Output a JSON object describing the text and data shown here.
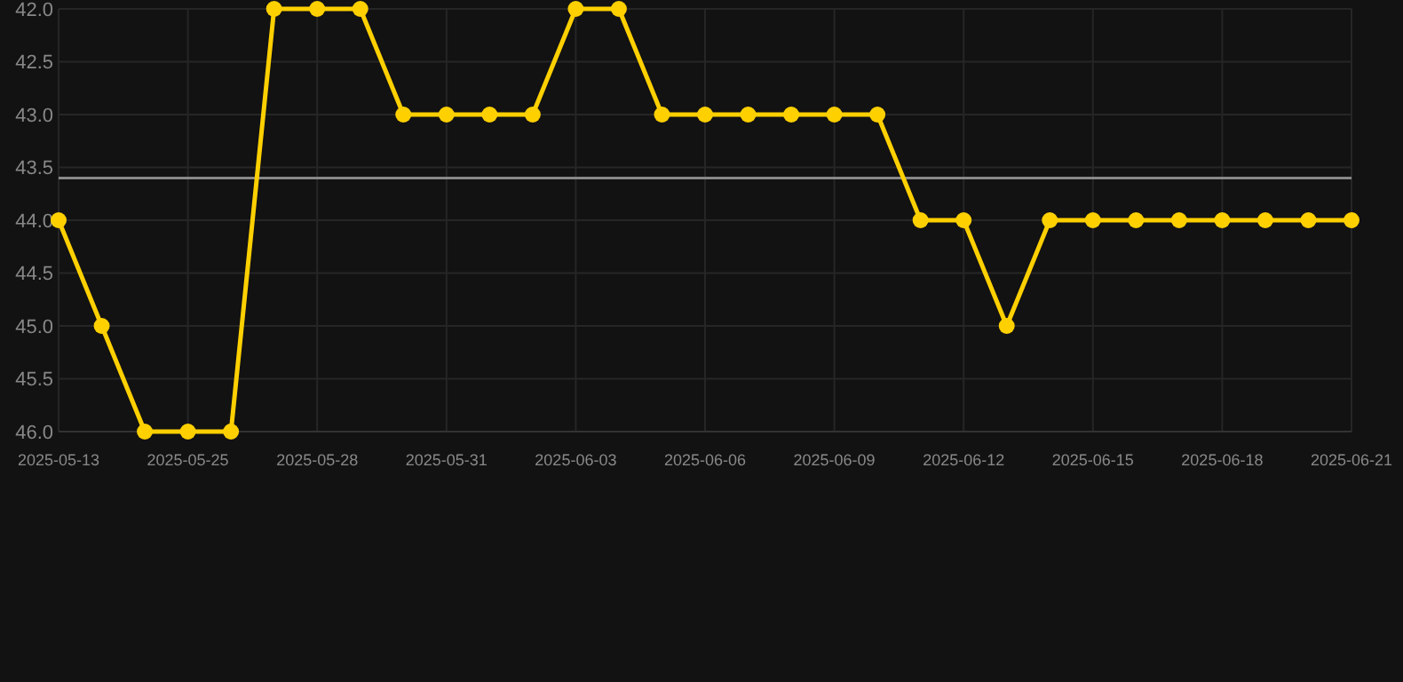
{
  "chart_data": {
    "type": "line",
    "categories": [
      "2025-05-13",
      null,
      null,
      "2025-05-25",
      null,
      null,
      "2025-05-28",
      null,
      null,
      "2025-05-31",
      null,
      null,
      "2025-06-03",
      null,
      null,
      "2025-06-06",
      null,
      null,
      "2025-06-09",
      null,
      null,
      "2025-06-12",
      null,
      null,
      "2025-06-15",
      null,
      null,
      "2025-06-18",
      null,
      null,
      "2025-06-21"
    ],
    "series": [
      {
        "color": "#ffd000",
        "values": [
          44,
          45,
          46,
          46,
          46,
          42,
          42,
          42,
          43,
          43,
          43,
          43,
          42,
          42,
          43,
          43,
          43,
          43,
          43,
          43,
          44,
          44,
          45,
          44,
          44,
          44,
          44,
          44,
          44,
          44,
          44
        ]
      }
    ],
    "ylim": [
      46,
      42
    ],
    "yticks": [
      {
        "value": 42,
        "label": "42.0"
      },
      {
        "value": 42.5,
        "label": "42.5"
      },
      {
        "value": 43,
        "label": "43.0"
      },
      {
        "value": 43.5,
        "label": "43.5"
      },
      {
        "value": 44,
        "label": "44.0"
      },
      {
        "value": 44.5,
        "label": "44.5"
      },
      {
        "value": 45,
        "label": "45.0"
      },
      {
        "value": 45.5,
        "label": "45.5"
      },
      {
        "value": 46,
        "label": "46.0"
      }
    ],
    "ref_lines": [
      {
        "axis": "y",
        "value": 43.6,
        "color": "#888888"
      }
    ],
    "grid": true,
    "marker": "circle",
    "line_style": "solid"
  }
}
